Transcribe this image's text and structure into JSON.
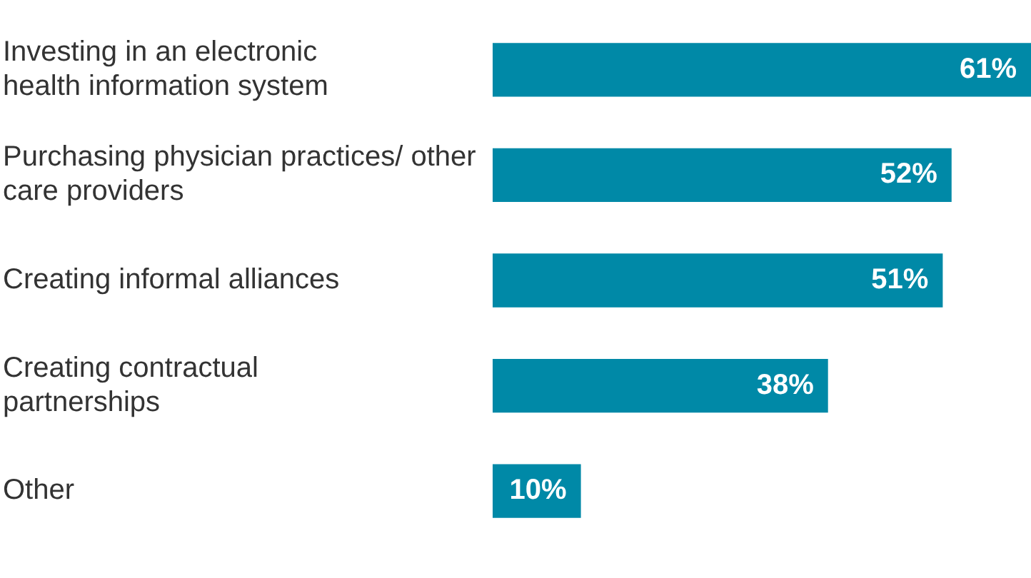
{
  "chart_data": {
    "type": "bar",
    "orientation": "horizontal",
    "categories": [
      "Investing in an electronic health information system",
      "Purchasing physician practices/ other care providers",
      "Creating informal alliances",
      "Creating contractual partnerships",
      "Other"
    ],
    "values": [
      61,
      52,
      51,
      38,
      10
    ],
    "value_labels": [
      "61%",
      "52%",
      "51%",
      "38%",
      "10%"
    ],
    "color": "#0089a7",
    "legend": false
  }
}
